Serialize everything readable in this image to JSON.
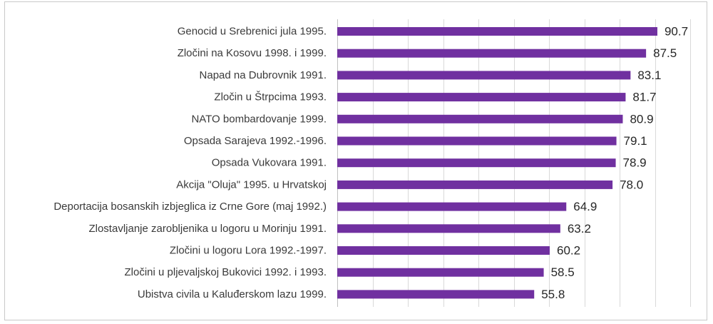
{
  "chart_data": {
    "type": "bar",
    "orientation": "horizontal",
    "title": "",
    "xlabel": "",
    "ylabel": "",
    "xlim": [
      0,
      100
    ],
    "grid": true,
    "legend": "none",
    "bar_color": "#7030a0",
    "categories": [
      "Genocid u Srebrenici jula 1995.",
      "Zločini na Kosovu 1998. i 1999.",
      "Napad na Dubrovnik 1991.",
      "Zločin u Štrpcima 1993.",
      "NATO bombardovanje 1999.",
      "Opsada Sarajeva 1992.-1996.",
      "Opsada Vukovara 1991.",
      "Akcija \"Oluja\" 1995. u Hrvatskoj",
      "Deportacija bosanskih izbjeglica iz Crne Gore (maj 1992.)",
      "Zlostavljanje zarobljenika u logoru u Morinju 1991.",
      "Zločini u logoru Lora 1992.-1997.",
      "Zločini u pljevaljskoj Bukovici 1992. i 1993.",
      "Ubistva civila u Kaluđerskom lazu 1999."
    ],
    "values": [
      90.7,
      87.5,
      83.1,
      81.7,
      80.9,
      79.1,
      78.9,
      78.0,
      64.9,
      63.2,
      60.2,
      58.5,
      55.8
    ],
    "value_labels": [
      "90.7",
      "87.5",
      "83.1",
      "81.7",
      "80.9",
      "79.1",
      "78.9",
      "78.0",
      "64.9",
      "63.2",
      "60.2",
      "58.5",
      "55.8"
    ]
  }
}
